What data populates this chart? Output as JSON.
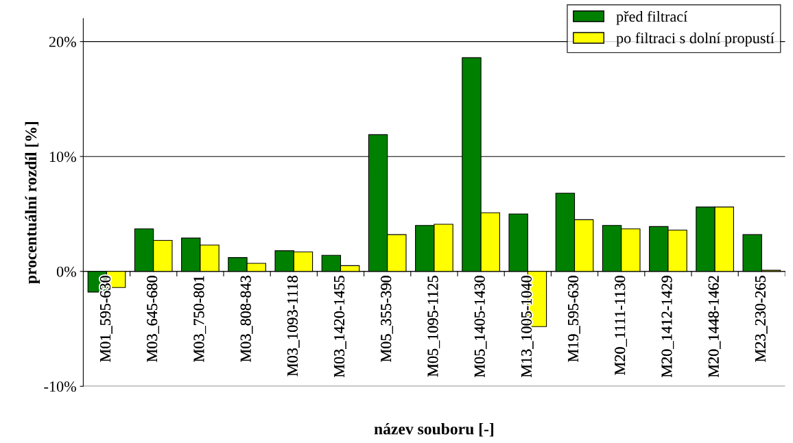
{
  "chart_data": {
    "type": "bar",
    "categories": [
      "M01_595-630",
      "M03_645-680",
      "M03_750-801",
      "M03_808-843",
      "M03_1093-1118",
      "M03_1420-1455",
      "M05_355-390",
      "M05_1095-1125",
      "M05_1405-1430",
      "M13_1005-1040",
      "M19_595-630",
      "M20_1111-1130",
      "M20_1412-1429",
      "M20_1448-1462",
      "M23_230-265"
    ],
    "series": [
      {
        "name": "před filtrací",
        "color": "#008000",
        "values": [
          -1.8,
          3.7,
          2.9,
          1.2,
          1.8,
          1.4,
          11.9,
          4.0,
          18.6,
          5.0,
          6.8,
          4.0,
          3.9,
          5.6,
          3.2
        ]
      },
      {
        "name": "po filtraci s dolní propustí",
        "color": "#ffff00",
        "values": [
          -1.4,
          2.7,
          2.3,
          0.7,
          1.7,
          0.5,
          3.2,
          4.1,
          5.1,
          -4.8,
          4.5,
          3.7,
          3.6,
          5.6,
          0.1
        ]
      }
    ],
    "xlabel": "název souboru [-]",
    "ylabel": "procentuální rozdíl [%]",
    "ylim": [
      -10,
      22
    ],
    "yticks": [
      {
        "value": -10,
        "label": "-10%"
      },
      {
        "value": 0,
        "label": "0%"
      },
      {
        "value": 10,
        "label": "10%"
      },
      {
        "value": 20,
        "label": "20%"
      }
    ],
    "grid": "y",
    "legend": "top right"
  }
}
